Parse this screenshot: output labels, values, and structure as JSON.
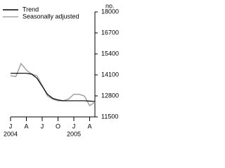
{
  "chart_data": {
    "type": "line",
    "y_unit": "no.",
    "categories": [
      "J",
      null,
      null,
      "A",
      null,
      null,
      "J",
      null,
      null,
      "O",
      null,
      null,
      "J",
      null,
      null,
      "A",
      null
    ],
    "years": [
      "2004",
      null,
      null,
      null,
      null,
      null,
      null,
      null,
      null,
      null,
      null,
      null,
      "2005",
      null,
      null,
      null,
      null
    ],
    "series": [
      {
        "name": "Trend",
        "color": "#000000",
        "values": [
          14200,
          14200,
          14200,
          14200,
          14150,
          13900,
          13400,
          12900,
          12650,
          12550,
          12500,
          12500,
          12500,
          12500,
          12500,
          12480,
          12450
        ]
      },
      {
        "name": "Seasonally adjusted",
        "color": "#a6a6a6",
        "values": [
          14050,
          14000,
          14800,
          14400,
          14150,
          14050,
          13450,
          12800,
          12600,
          12500,
          12500,
          12600,
          12900,
          12900,
          12800,
          12200,
          12400
        ]
      }
    ],
    "ylim": [
      11500,
      18000
    ],
    "yticks": [
      11500,
      12800,
      14100,
      15400,
      16700,
      18000
    ],
    "legend": "top-left"
  }
}
